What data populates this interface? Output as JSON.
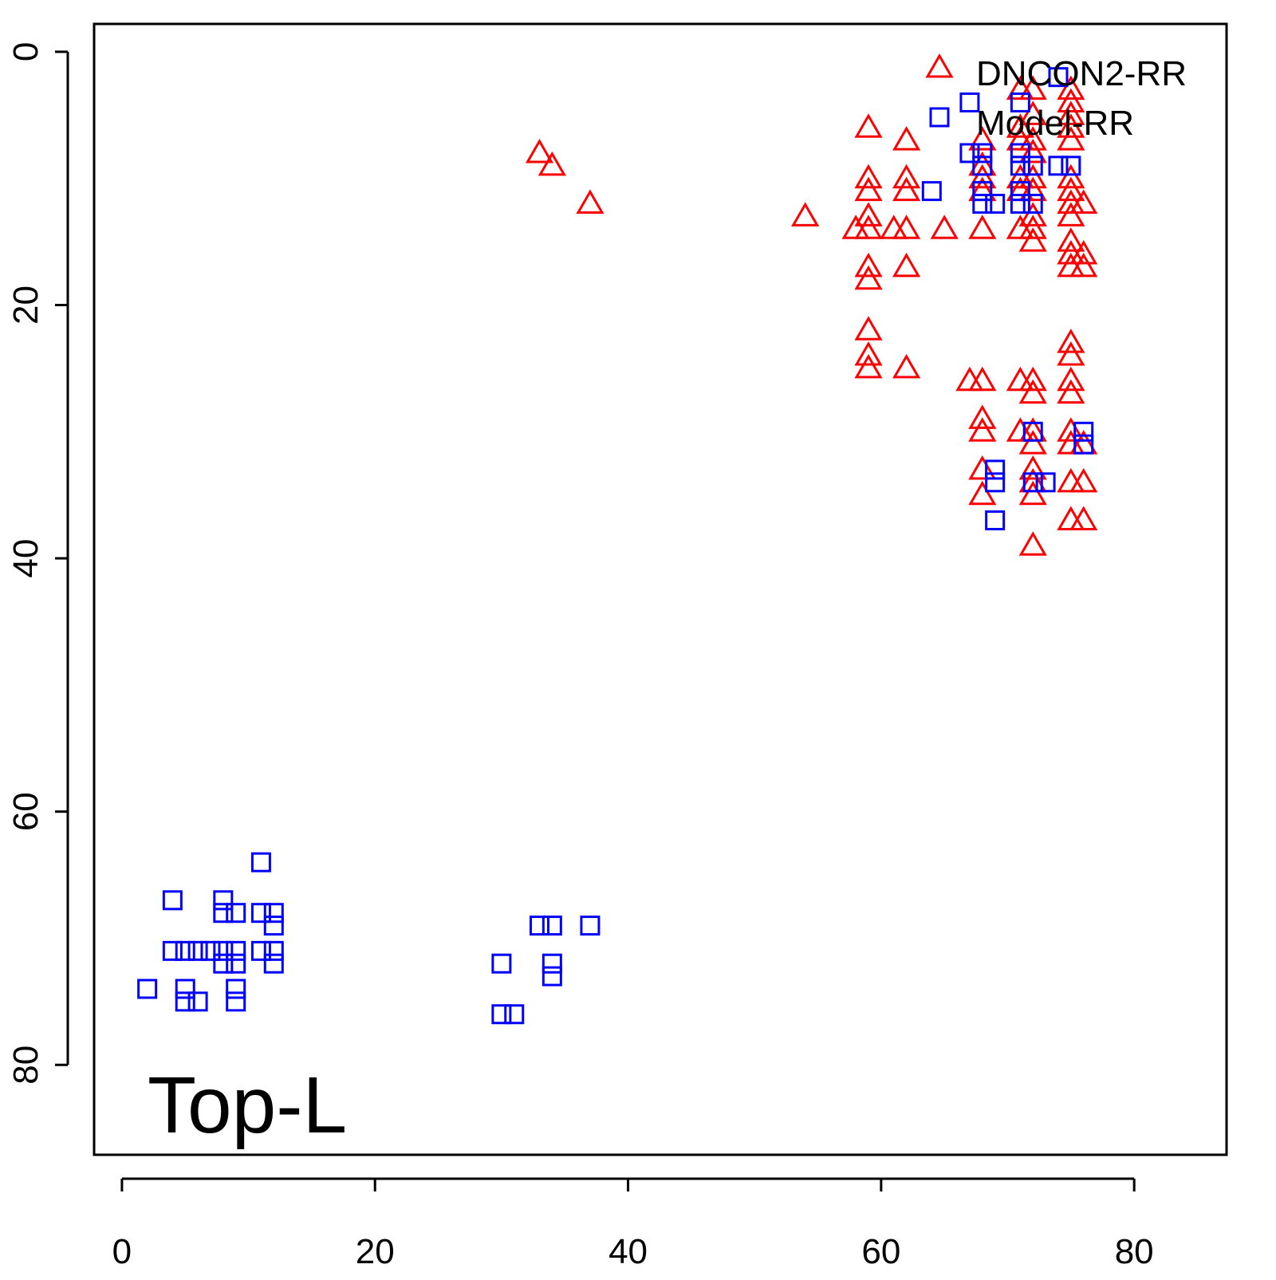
{
  "chart_data": {
    "type": "scatter",
    "annotation": "Top-L",
    "xlim": [
      -2.2,
      87.3
    ],
    "ylim": [
      -2.2,
      87.1
    ],
    "y_reversed": true,
    "xticks": [
      0,
      20,
      40,
      60,
      80
    ],
    "yticks": [
      0,
      20,
      40,
      60,
      80
    ],
    "legend": "topright",
    "series": [
      {
        "name": "DNCON2-RR",
        "color": "#ff0000",
        "marker": "triangle",
        "x": [
          33,
          34,
          37,
          54,
          59,
          59,
          59,
          59,
          58,
          59,
          61,
          62,
          59,
          59,
          59,
          59,
          59,
          62,
          62,
          62,
          62,
          62,
          65,
          68,
          68,
          68,
          68,
          68,
          67,
          68,
          68,
          68,
          68,
          68,
          71,
          71,
          71,
          71,
          71,
          71,
          71,
          71,
          72,
          72,
          72,
          72,
          72,
          72,
          72,
          72,
          72,
          72,
          72,
          72,
          72,
          72,
          72,
          72,
          72,
          75,
          75,
          75,
          75,
          75,
          75,
          75,
          75,
          75,
          75,
          75,
          75,
          75,
          75,
          75,
          75,
          75,
          75,
          75,
          75,
          76,
          76,
          76,
          76,
          76,
          76
        ],
        "y": [
          8,
          9,
          12,
          13,
          6,
          10,
          11,
          13,
          14,
          14,
          14,
          14,
          17,
          18,
          22,
          24,
          25,
          7,
          10,
          11,
          17,
          25,
          14,
          7,
          9,
          10,
          11,
          14,
          26,
          26,
          29,
          30,
          33,
          35,
          3,
          6,
          7,
          10,
          11,
          14,
          26,
          30,
          3,
          5,
          7,
          8,
          10,
          11,
          13,
          14,
          15,
          26,
          27,
          30,
          31,
          33,
          34,
          35,
          39,
          3,
          4,
          5,
          6,
          7,
          10,
          11,
          12,
          13,
          15,
          16,
          17,
          23,
          24,
          26,
          27,
          30,
          31,
          34,
          37,
          12,
          16,
          17,
          31,
          34,
          37
        ]
      },
      {
        "name": "Model-RR",
        "color": "#0000ff",
        "marker": "square",
        "x": [
          2,
          4,
          4,
          5,
          6,
          7,
          8,
          9,
          5,
          5,
          6,
          8,
          8,
          9,
          8,
          9,
          9,
          9,
          11,
          11,
          12,
          12,
          11,
          12,
          12,
          30,
          30,
          31,
          33,
          34,
          34,
          34,
          37,
          64,
          67,
          67,
          68,
          68,
          68,
          68,
          69,
          69,
          69,
          69,
          71,
          71,
          71,
          71,
          71,
          72,
          72,
          72,
          72,
          73,
          74,
          74,
          75,
          76,
          76
        ],
        "y": [
          74,
          67,
          71,
          71,
          71,
          71,
          71,
          71,
          74,
          75,
          75,
          67,
          68,
          68,
          72,
          72,
          74,
          75,
          64,
          68,
          68,
          69,
          71,
          71,
          72,
          72,
          76,
          76,
          69,
          69,
          72,
          73,
          69,
          11,
          4,
          8,
          8,
          9,
          11,
          12,
          12,
          33,
          34,
          37,
          4,
          8,
          9,
          11,
          12,
          9,
          12,
          30,
          34,
          34,
          2,
          9,
          9,
          30,
          31
        ]
      }
    ]
  }
}
